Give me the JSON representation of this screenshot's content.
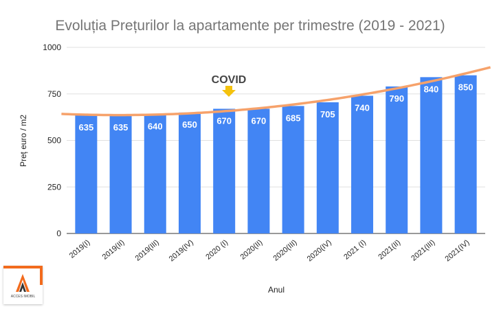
{
  "chart_data": {
    "type": "bar",
    "title": "Evoluția Prețurilor la apartamente per trimestre (2019 - 2021)",
    "xlabel": "Anul",
    "ylabel": "Preț euro / m2",
    "ylim": [
      0,
      1000
    ],
    "yticks": [
      0,
      250,
      500,
      750,
      1000
    ],
    "grid": true,
    "categories": [
      "2019(I)",
      "2019(II)",
      "2019(III)",
      "2019(IV)",
      "2020 (I)",
      "2020(II)",
      "2020(III)",
      "2020(IV)",
      "2021 (I)",
      "2021(II)",
      "2021(III)",
      "2021(IV)"
    ],
    "values": [
      635,
      635,
      640,
      650,
      670,
      670,
      685,
      705,
      740,
      790,
      840,
      850
    ],
    "data_labels": true,
    "bar_color": "#4285f4",
    "trendline": {
      "type": "polynomial",
      "color": "#f6a26b"
    },
    "annotation": {
      "text": "COVID",
      "category": "2020 (I)",
      "arrow_color": "#f4c20d"
    }
  },
  "logo": {
    "text": "ACCES IMOBIL",
    "color": "#f26b1d"
  }
}
